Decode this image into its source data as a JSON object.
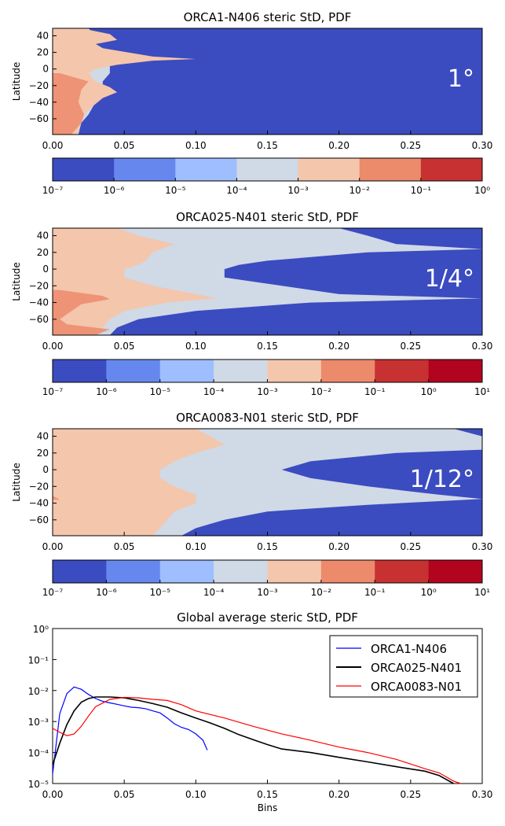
{
  "chart_data": [
    {
      "type": "heatmap",
      "title": "ORCA1-N406 steric StD, PDF",
      "ylabel": "Latitude",
      "xlim": [
        0,
        0.3
      ],
      "ylim": [
        -79,
        49
      ],
      "xticks": [
        "0.00",
        "0.05",
        "0.10",
        "0.15",
        "0.20",
        "0.25",
        "0.30"
      ],
      "yticks": [
        "40",
        "20",
        "0",
        "−20",
        "−40",
        "−60"
      ],
      "annotation": "1°",
      "colorbar": {
        "scale": "log",
        "ticks": [
          "10⁻⁷",
          "10⁻⁶",
          "10⁻⁵",
          "10⁻⁴",
          "10⁻³",
          "10⁻²",
          "10⁻¹",
          "10⁰"
        ],
        "colors": [
          "#3b4cc0",
          "#6688ee",
          "#9ebeff",
          "#d0d9e6",
          "#f4c6ac",
          "#ec8a6c",
          "#c73131"
        ]
      }
    },
    {
      "type": "heatmap",
      "title": "ORCA025-N401 steric StD, PDF",
      "ylabel": "Latitude",
      "xlim": [
        0,
        0.3
      ],
      "ylim": [
        -79,
        49
      ],
      "xticks": [
        "0.00",
        "0.05",
        "0.10",
        "0.15",
        "0.20",
        "0.25",
        "0.30"
      ],
      "yticks": [
        "40",
        "20",
        "0",
        "−20",
        "−40",
        "−60"
      ],
      "annotation": "1/4°",
      "colorbar": {
        "scale": "log",
        "ticks": [
          "10⁻⁷",
          "10⁻⁶",
          "10⁻⁵",
          "10⁻⁴",
          "10⁻³",
          "10⁻²",
          "10⁻¹",
          "10⁰",
          "10¹"
        ],
        "colors": [
          "#3b4cc0",
          "#6688ee",
          "#9ebeff",
          "#d0d9e6",
          "#f4c6ac",
          "#ec8a6c",
          "#c73131",
          "#b2041f"
        ]
      }
    },
    {
      "type": "heatmap",
      "title": "ORCA0083-N01 steric StD, PDF",
      "ylabel": "Latitude",
      "xlim": [
        0,
        0.3
      ],
      "ylim": [
        -79,
        49
      ],
      "xticks": [
        "0.00",
        "0.05",
        "0.10",
        "0.15",
        "0.20",
        "0.25",
        "0.30"
      ],
      "yticks": [
        "40",
        "20",
        "0",
        "−20",
        "−40",
        "−60"
      ],
      "annotation": "1/12°",
      "colorbar": {
        "scale": "log",
        "ticks": [
          "10⁻⁷",
          "10⁻⁶",
          "10⁻⁵",
          "10⁻⁴",
          "10⁻³",
          "10⁻²",
          "10⁻¹",
          "10⁰",
          "10¹"
        ],
        "colors": [
          "#3b4cc0",
          "#6688ee",
          "#9ebeff",
          "#d0d9e6",
          "#f4c6ac",
          "#ec8a6c",
          "#c73131",
          "#b2041f"
        ]
      }
    },
    {
      "type": "line",
      "title": "Global average steric StD, PDF",
      "xlabel": "Bins",
      "ylabel": "",
      "yscale": "log",
      "xlim": [
        0,
        0.3
      ],
      "ylim": [
        1e-05,
        1
      ],
      "xticks": [
        "0.00",
        "0.05",
        "0.10",
        "0.15",
        "0.20",
        "0.25",
        "0.30"
      ],
      "yticks": [
        "10⁰",
        "10⁻¹",
        "10⁻²",
        "10⁻³",
        "10⁻⁴",
        "10⁻⁵"
      ],
      "legend": "top-right",
      "series": [
        {
          "name": "ORCA1-N406",
          "color": "#0000ff",
          "x": [
            0.0,
            0.005,
            0.01,
            0.015,
            0.02,
            0.025,
            0.03,
            0.035,
            0.04,
            0.045,
            0.05,
            0.055,
            0.06,
            0.065,
            0.07,
            0.075,
            0.08,
            0.085,
            0.09,
            0.095,
            0.1,
            0.105,
            0.108
          ],
          "y": [
            2e-05,
            0.0018,
            0.008,
            0.013,
            0.011,
            0.0075,
            0.0055,
            0.0045,
            0.004,
            0.0036,
            0.0032,
            0.0029,
            0.0028,
            0.0026,
            0.0022,
            0.0019,
            0.0013,
            0.00085,
            0.00065,
            0.00055,
            0.0004,
            0.00025,
            0.00012
          ]
        },
        {
          "name": "ORCA025-N401",
          "color": "#000000",
          "x": [
            0.0,
            0.005,
            0.01,
            0.015,
            0.02,
            0.025,
            0.03,
            0.04,
            0.05,
            0.06,
            0.07,
            0.08,
            0.09,
            0.1,
            0.11,
            0.12,
            0.13,
            0.14,
            0.15,
            0.16,
            0.18,
            0.2,
            0.22,
            0.24,
            0.26,
            0.27,
            0.28
          ],
          "y": [
            4e-05,
            0.0002,
            0.0008,
            0.0022,
            0.0042,
            0.0055,
            0.0062,
            0.0062,
            0.0058,
            0.0048,
            0.0038,
            0.0029,
            0.0019,
            0.0013,
            0.0009,
            0.0006,
            0.00038,
            0.00026,
            0.00018,
            0.00013,
            0.0001,
            7e-05,
            5e-05,
            3.5e-05,
            2.5e-05,
            1.8e-05,
            1e-05
          ]
        },
        {
          "name": "ORCA0083-N01",
          "color": "#ff0000",
          "x": [
            0.0,
            0.005,
            0.01,
            0.015,
            0.02,
            0.025,
            0.03,
            0.04,
            0.05,
            0.06,
            0.07,
            0.08,
            0.09,
            0.1,
            0.12,
            0.14,
            0.16,
            0.18,
            0.2,
            0.22,
            0.24,
            0.26,
            0.27,
            0.28,
            0.285
          ],
          "y": [
            0.0006,
            0.00045,
            0.00035,
            0.0004,
            0.0007,
            0.0015,
            0.003,
            0.0052,
            0.006,
            0.0058,
            0.0052,
            0.0048,
            0.0035,
            0.0022,
            0.0013,
            0.0007,
            0.0004,
            0.00025,
            0.00015,
            0.0001,
            6e-05,
            3e-05,
            2.2e-05,
            1.2e-05,
            1e-05
          ]
        }
      ]
    }
  ]
}
